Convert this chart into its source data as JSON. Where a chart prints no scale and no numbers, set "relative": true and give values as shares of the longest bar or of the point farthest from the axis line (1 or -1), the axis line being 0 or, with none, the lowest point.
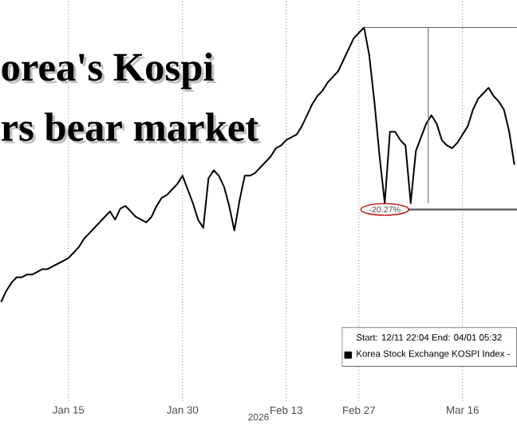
{
  "chart_data": {
    "type": "line",
    "title": "orea's Kospi",
    "subtitle": "rs bear market",
    "xlabel": "2026",
    "relative": true,
    "legend_title": "Start: 12/11 22:04 End: 04/01 05:32",
    "legend": "bottom right",
    "grid": "x",
    "marker": "none",
    "line_style": "solid",
    "categories": [
      null,
      null,
      null,
      null,
      null,
      null,
      null,
      null,
      null,
      null,
      null,
      null,
      null,
      "Jan 15",
      null,
      null,
      null,
      null,
      null,
      null,
      null,
      null,
      null,
      null,
      null,
      null,
      null,
      null,
      null,
      null,
      null,
      null,
      null,
      null,
      null,
      "Jan 30",
      null,
      null,
      null,
      null,
      null,
      null,
      null,
      null,
      null,
      null,
      null,
      null,
      null,
      null,
      null,
      null,
      null,
      null,
      null,
      "Feb 13",
      null,
      null,
      null,
      null,
      null,
      null,
      null,
      null,
      null,
      null,
      null,
      null,
      null,
      "Feb 27",
      null,
      null,
      null,
      null,
      null,
      null,
      null,
      null,
      null,
      null,
      null,
      null,
      null,
      null,
      null,
      null,
      null,
      null,
      null,
      "Mar 16",
      null,
      null,
      null,
      null,
      null,
      null,
      null,
      null,
      null,
      null
    ],
    "annotations": [
      {
        "text": "-20.27%",
        "y": 0.36
      }
    ],
    "series": [
      {
        "name": "Korea Stock Exchange KOSPI Index -",
        "color": "#000000",
        "values": [
          0,
          0.04,
          0.07,
          0.09,
          0.09,
          0.1,
          0.1,
          0.11,
          0.12,
          0.12,
          0.13,
          0.14,
          0.15,
          0.16,
          0.18,
          0.2,
          0.23,
          0.25,
          0.27,
          0.29,
          0.31,
          0.33,
          0.3,
          0.34,
          0.35,
          0.33,
          0.31,
          0.3,
          0.29,
          0.31,
          0.35,
          0.38,
          0.39,
          0.41,
          0.43,
          0.46,
          0.41,
          0.36,
          0.3,
          0.27,
          0.45,
          0.48,
          0.46,
          0.42,
          0.35,
          0.26,
          0.37,
          0.46,
          0.46,
          0.47,
          0.49,
          0.51,
          0.53,
          0.56,
          0.57,
          0.59,
          0.6,
          0.61,
          0.64,
          0.68,
          0.72,
          0.75,
          0.77,
          0.8,
          0.82,
          0.84,
          0.88,
          0.92,
          0.96,
          0.98,
          1.0,
          0.9,
          0.73,
          0.53,
          0.36,
          0.62,
          0.62,
          0.59,
          0.57,
          0.36,
          0.55,
          0.6,
          0.65,
          0.68,
          0.65,
          0.59,
          0.57,
          0.56,
          0.58,
          0.61,
          0.64,
          0.7,
          0.74,
          0.76,
          0.78,
          0.75,
          0.73,
          0.7,
          0.62,
          0.5
        ]
      }
    ]
  }
}
